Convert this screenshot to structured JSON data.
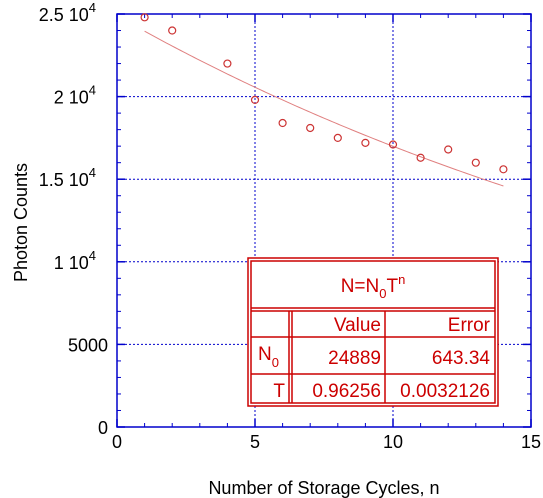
{
  "chart_data": {
    "type": "scatter",
    "xlabel": "Number of Storage Cycles, n",
    "ylabel": "Photon Counts",
    "xlim": [
      0,
      15
    ],
    "ylim": [
      0,
      25000
    ],
    "x_ticks": [
      {
        "value": 0,
        "label": "0"
      },
      {
        "value": 5,
        "label": "5"
      },
      {
        "value": 10,
        "label": "10"
      },
      {
        "value": 15,
        "label": "15"
      }
    ],
    "y_ticks": [
      {
        "value": 0,
        "base": "0",
        "exp": ""
      },
      {
        "value": 5000,
        "base": "5000",
        "exp": ""
      },
      {
        "value": 10000,
        "base": "1 10",
        "exp": "4"
      },
      {
        "value": 15000,
        "base": "1.5 10",
        "exp": "4"
      },
      {
        "value": 20000,
        "base": "2 10",
        "exp": "4"
      },
      {
        "value": 25000,
        "base": "2.5 10",
        "exp": "4"
      }
    ],
    "grid": true,
    "series": [
      {
        "marker": "circle",
        "color": "#cc3333",
        "x": [
          1,
          2,
          4,
          5,
          6,
          7,
          8,
          9,
          10,
          11,
          12,
          13,
          14
        ],
        "y": [
          24800,
          24000,
          22000,
          19800,
          18400,
          18100,
          17500,
          17200,
          17100,
          16300,
          16800,
          16000,
          15600
        ]
      }
    ],
    "fit": {
      "model": "N=N0*T^n",
      "N0": 24889,
      "T": 0.96256,
      "x_range": [
        1,
        14
      ],
      "color": "#e08080"
    },
    "fit_table": {
      "title_main": "N=N",
      "title_sub": "0",
      "title_main2": "T",
      "title_sup": "n",
      "col_value": "Value",
      "col_error": "Error",
      "rows": [
        {
          "name": "N",
          "sub": "0",
          "value": "24889",
          "error": "643.34"
        },
        {
          "name": "T",
          "sub": "",
          "value": "0.96256",
          "error": "0.0032126"
        }
      ]
    }
  }
}
